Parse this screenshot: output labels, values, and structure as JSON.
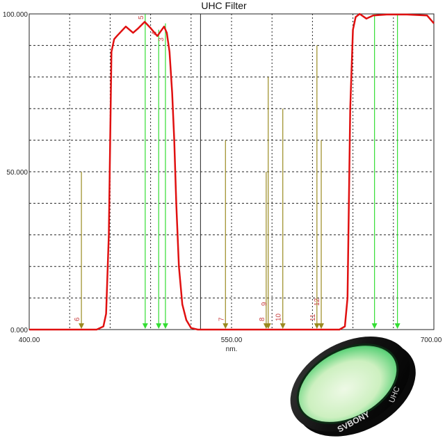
{
  "chart_data": {
    "type": "line",
    "title": "UHC Filter",
    "xlabel": "nm.",
    "ylabel": "",
    "xlim": [
      400,
      700
    ],
    "ylim": [
      0,
      100
    ],
    "x_tick_labels": [
      "400.00",
      "550.00",
      "700.00"
    ],
    "x_ticks": [
      400,
      550,
      700
    ],
    "y_tick_labels": [
      "0.000",
      "50.000",
      "100.000"
    ],
    "y_ticks": [
      0,
      50,
      100
    ],
    "grid": true,
    "grid_x_step": 30,
    "grid_y_step": 10,
    "divider_x": 527,
    "series": [
      {
        "color": "#e01010",
        "x": [
          400,
          450,
          455,
          457,
          459,
          461,
          463,
          465,
          471.6,
          477,
          481,
          485.6,
          490,
          495,
          500,
          502,
          504,
          506,
          507.5,
          509,
          511,
          513.5,
          516.5,
          520,
          525,
          630,
          634,
          636,
          638,
          640,
          642,
          645,
          650,
          655,
          665,
          680,
          695,
          700
        ],
        "y": [
          0,
          0,
          1,
          5,
          30,
          88,
          92,
          93,
          96,
          94,
          95.5,
          97.5,
          95.5,
          93,
          96,
          94,
          88,
          75,
          60,
          40,
          20,
          8,
          3,
          0.5,
          0,
          0,
          1,
          10,
          70,
          95,
          99,
          100,
          98.5,
          99.5,
          99.8,
          99.8,
          99.5,
          97
        ]
      }
    ],
    "markers": [
      {
        "x": 438.7,
        "height": 50,
        "color": "#9a8a20",
        "label": "6"
      },
      {
        "x": 486,
        "height": 100,
        "color": "#33dd33",
        "label": "5"
      },
      {
        "x": 496,
        "height": 95,
        "color": "#33dd33",
        "label": "4"
      },
      {
        "x": 501,
        "height": 97,
        "color": "#33dd33",
        "label": "3"
      },
      {
        "x": 545.5,
        "height": 60,
        "color": "#9a8a20",
        "label": "7"
      },
      {
        "x": 575.7,
        "height": 50,
        "color": "#9a8a20",
        "label": "8"
      },
      {
        "x": 577.2,
        "height": 80,
        "color": "#9a8a20",
        "label": "9"
      },
      {
        "x": 588,
        "height": 70,
        "color": "#9a8a20",
        "label": "10"
      },
      {
        "x": 613.3,
        "height": 90,
        "color": "#9a8a20",
        "label": "11"
      },
      {
        "x": 616.5,
        "height": 60,
        "color": "#9a8a20",
        "label": "12"
      },
      {
        "x": 656,
        "height": 100,
        "color": "#33dd33",
        "label": ""
      },
      {
        "x": 673,
        "height": 100,
        "color": "#33dd33",
        "label": ""
      }
    ]
  },
  "photo": {
    "brand": "SVBONY",
    "model": "UHC"
  }
}
